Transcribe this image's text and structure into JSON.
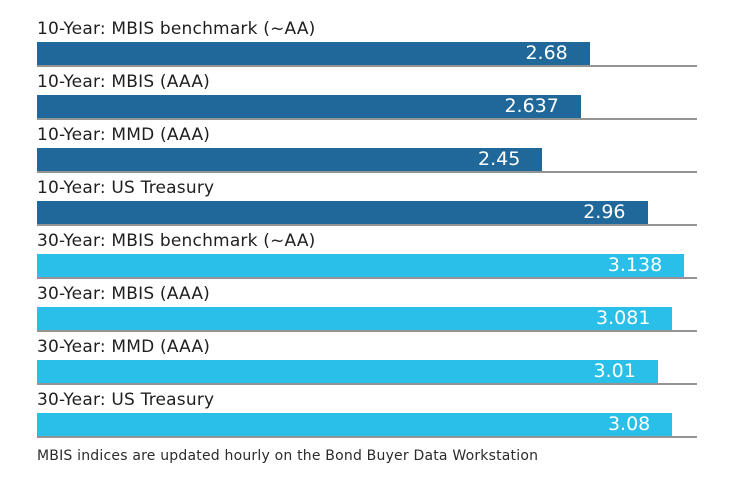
{
  "chart_data": {
    "type": "bar",
    "orientation": "horizontal",
    "title": "",
    "xlabel": "",
    "ylabel": "",
    "xlim": [
      0,
      3.2
    ],
    "grid": false,
    "legend_position": "none",
    "value_labels": "inside-end",
    "categories": [
      "10-Year: MBIS benchmark (~AA)",
      "10-Year: MBIS (AAA)",
      "10-Year: MMD (AAA)",
      "10-Year: US Treasury",
      "30-Year: MBIS benchmark (~AA)",
      "30-Year: MBIS (AAA)",
      "30-Year: MMD (AAA)",
      "30-Year: US Treasury"
    ],
    "values": [
      2.68,
      2.637,
      2.45,
      2.96,
      3.138,
      3.081,
      3.01,
      3.08
    ],
    "series": [
      {
        "name": "10-Year",
        "color": "#1f6899",
        "row_indexes": [
          0,
          1,
          2,
          3
        ]
      },
      {
        "name": "30-Year",
        "color": "#29bfe8",
        "row_indexes": [
          4,
          5,
          6,
          7
        ]
      }
    ],
    "rows": [
      {
        "label": "10-Year: MBIS benchmark (~AA)",
        "value": 2.68,
        "value_label": "2.68",
        "color": "#1f6899"
      },
      {
        "label": "10-Year: MBIS (AAA)",
        "value": 2.637,
        "value_label": "2.637",
        "color": "#1f6899"
      },
      {
        "label": "10-Year: MMD (AAA)",
        "value": 2.45,
        "value_label": "2.45",
        "color": "#1f6899"
      },
      {
        "label": "10-Year: US Treasury",
        "value": 2.96,
        "value_label": "2.96",
        "color": "#1f6899"
      },
      {
        "label": "30-Year: MBIS benchmark (~AA)",
        "value": 3.138,
        "value_label": "3.138",
        "color": "#29bfe8"
      },
      {
        "label": "30-Year: MBIS (AAA)",
        "value": 3.081,
        "value_label": "3.081",
        "color": "#29bfe8"
      },
      {
        "label": "30-Year: MMD (AAA)",
        "value": 3.01,
        "value_label": "3.01",
        "color": "#29bfe8"
      },
      {
        "label": "30-Year: US Treasury",
        "value": 3.08,
        "value_label": "3.08",
        "color": "#29bfe8"
      }
    ],
    "footnote": "MBIS indices are updated hourly on the Bond Buyer Data Workstation"
  },
  "colors": {
    "background": "#ffffff",
    "baseline": "#949494",
    "category_text": "#1f1f1f",
    "value_text": "#ffffff",
    "footnote_text": "#2b2b2b"
  }
}
